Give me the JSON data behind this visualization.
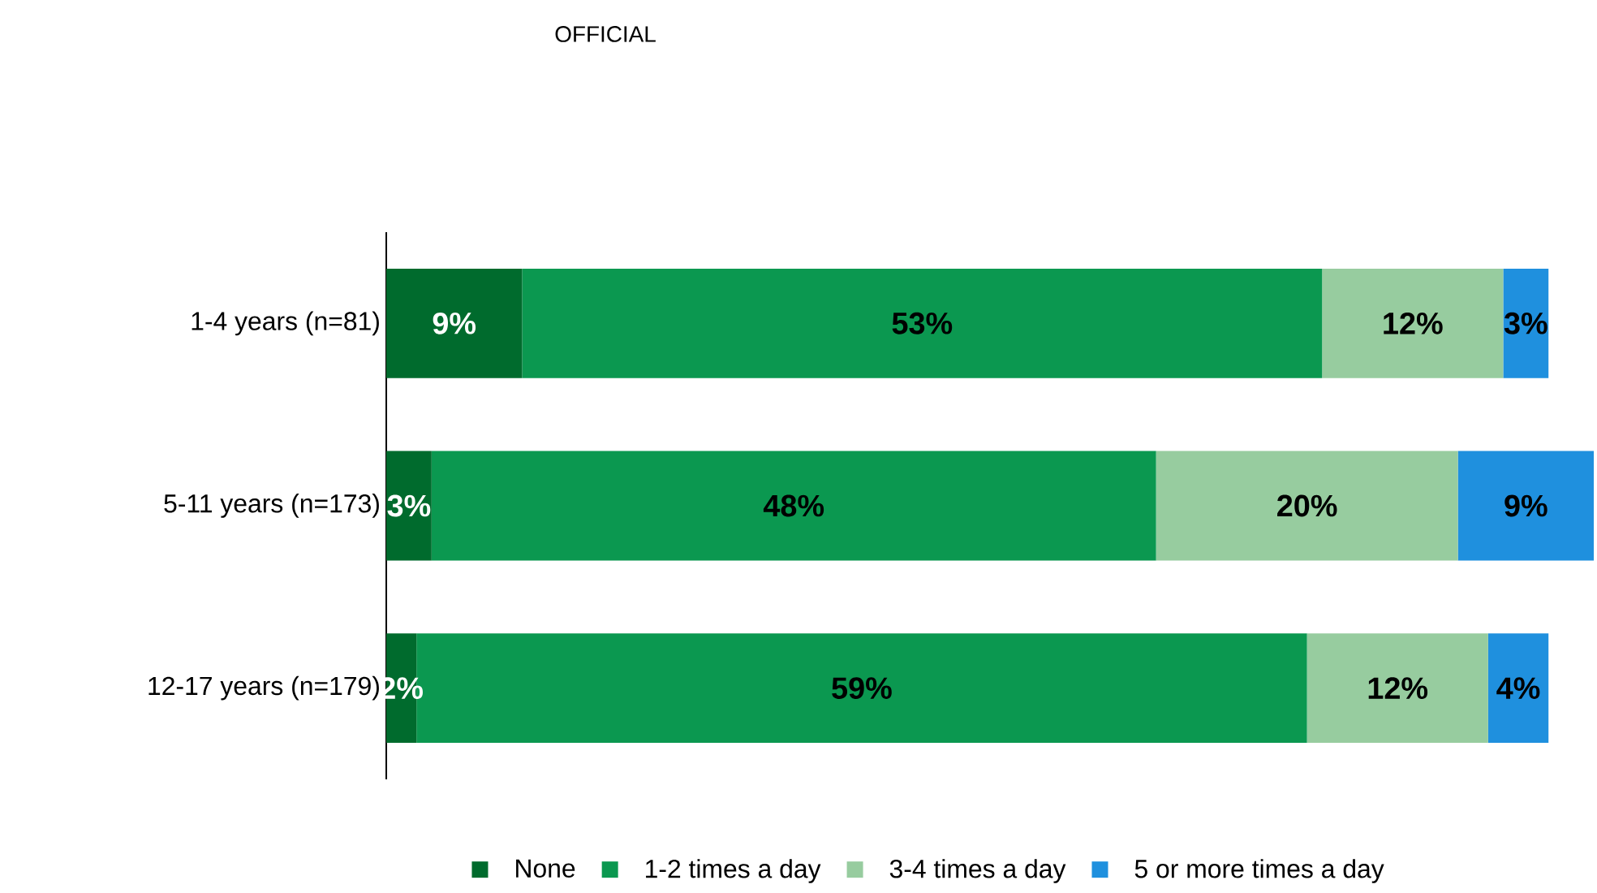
{
  "chart_data": {
    "type": "bar",
    "orientation": "horizontal",
    "stacked": true,
    "title": "OFFICIAL",
    "categories": [
      "1-4 years (n=81)",
      "5-11 years (n=173)",
      "12-17 years (n=179)"
    ],
    "series": [
      {
        "name": "None",
        "color": "#006b2d",
        "values": [
          9,
          3,
          2
        ],
        "value_labels": [
          "9%",
          "3%",
          "2%"
        ]
      },
      {
        "name": "1-2 times a day",
        "color": "#0b9850",
        "values": [
          53,
          48,
          59
        ],
        "value_labels": [
          "53%",
          "48%",
          "59%"
        ]
      },
      {
        "name": "3-4 times a day",
        "color": "#97cc9f",
        "values": [
          12,
          20,
          12
        ],
        "value_labels": [
          "12%",
          "20%",
          "12%"
        ]
      },
      {
        "name": "5 or more times a day",
        "color": "#1f90de",
        "values": [
          3,
          9,
          4
        ],
        "value_labels": [
          "3%",
          "9%",
          "4%"
        ]
      }
    ],
    "legend": "bottom"
  }
}
